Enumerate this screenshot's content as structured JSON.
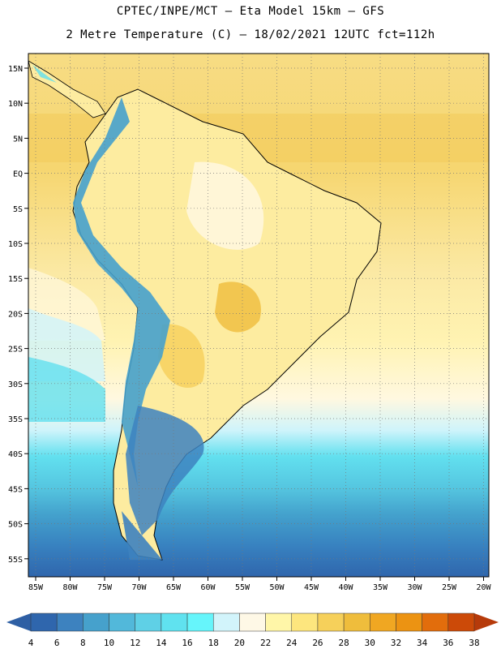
{
  "header": {
    "title_line1": "CPTEC/INPE/MCT –  Eta Model 15km – GFS",
    "title_line2": "2 Metre Temperature (C) – 18/02/2021 12UTC fct=112h"
  },
  "map": {
    "lat_labels": [
      "15N",
      "10N",
      "5N",
      "EQ",
      "5S",
      "10S",
      "15S",
      "20S",
      "25S",
      "30S",
      "35S",
      "40S",
      "45S",
      "50S",
      "55S"
    ],
    "lon_labels": [
      "85W",
      "80W",
      "75W",
      "70W",
      "65W",
      "60W",
      "55W",
      "50W",
      "45W",
      "40W",
      "35W",
      "30W",
      "25W",
      "20W"
    ],
    "colorbar": {
      "ticks": [
        "4",
        "6",
        "8",
        "10",
        "12",
        "14",
        "16",
        "18",
        "20",
        "22",
        "24",
        "26",
        "28",
        "30",
        "32",
        "34",
        "36",
        "38"
      ],
      "low_arrow_color": "#2e5fa4",
      "high_arrow_color": "#b63a0a",
      "colors": [
        "#2f66ad",
        "#3d82bf",
        "#46a1cc",
        "#52b8da",
        "#5fd0e6",
        "#60e2ef",
        "#66f5fb",
        "#d2f4fb",
        "#fef8e6",
        "#fff6a8",
        "#fde67e",
        "#f6d05a",
        "#efbd3c",
        "#f0a722",
        "#ec9312",
        "#e26d0c",
        "#cc4a08"
      ]
    }
  }
}
